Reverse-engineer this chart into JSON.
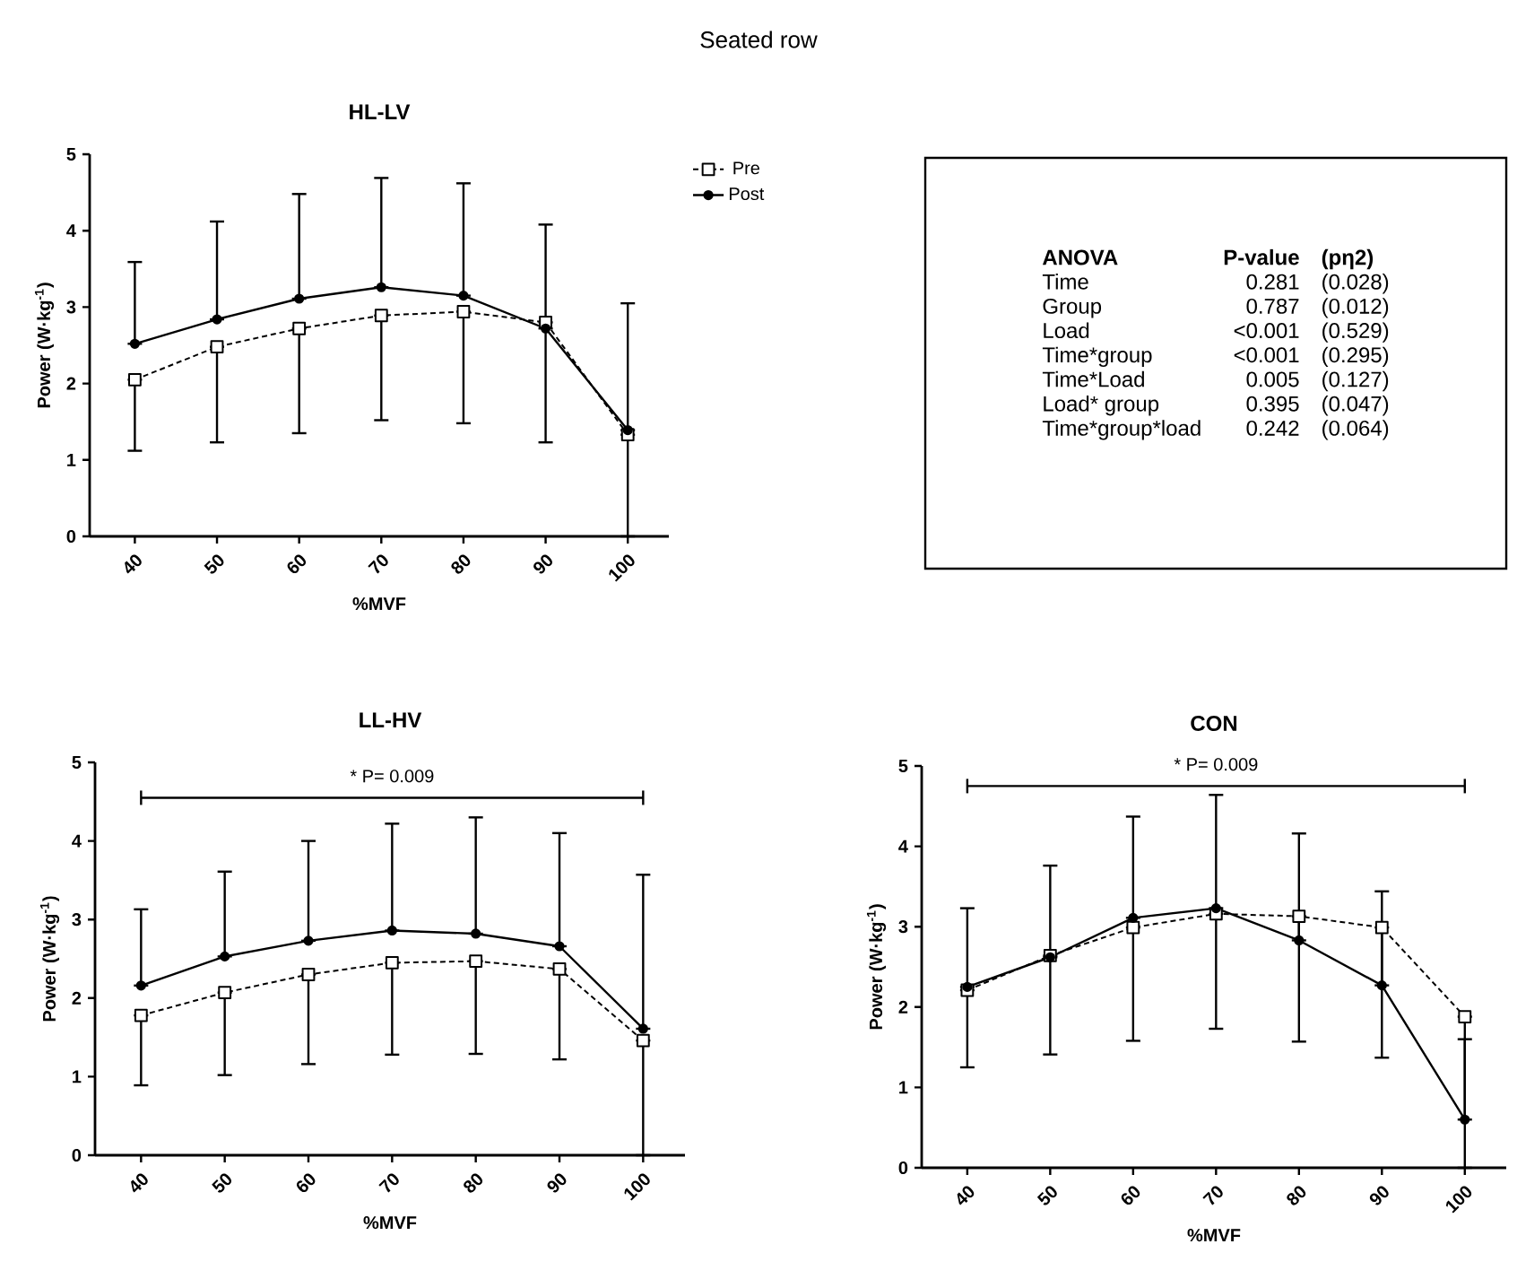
{
  "chart_data": [
    {
      "type": "line",
      "title": "HL-LV",
      "annotations": [
        "Seated row"
      ],
      "xlabel": "%MVF",
      "ylabel": "Power (W·kg$^{-1}$)",
      "categories": [
        "40",
        "50",
        "60",
        "70",
        "80",
        "90",
        "100"
      ],
      "ylim": [
        0,
        5
      ],
      "yticks": [
        0,
        1,
        2,
        3,
        4,
        5
      ],
      "legend": "top right",
      "series": [
        {
          "name": "Pre",
          "color": "#000000",
          "marker": "square",
          "line_style": "dashed",
          "values": [
            2.05,
            2.48,
            2.72,
            2.89,
            2.94,
            2.8,
            1.33
          ],
          "errors": [
            [
              1.12,
              2.05
            ],
            [
              1.23,
              2.48
            ],
            [
              1.35,
              2.72
            ],
            [
              1.52,
              2.89
            ],
            [
              1.48,
              2.94
            ],
            [
              1.23,
              2.8
            ],
            [
              0,
              1.33
            ]
          ]
        },
        {
          "name": "Post",
          "color": "#000000",
          "marker": "circle",
          "line_style": "solid",
          "values": [
            2.52,
            2.84,
            3.11,
            3.26,
            3.15,
            2.72,
            1.39
          ],
          "errors": [
            [
              2.52,
              3.59
            ],
            [
              2.84,
              4.12
            ],
            [
              3.11,
              4.48
            ],
            [
              3.26,
              4.69
            ],
            [
              3.15,
              4.62
            ],
            [
              2.72,
              4.08
            ],
            [
              1.39,
              3.05
            ]
          ]
        }
      ]
    },
    {
      "type": "other",
      "annotations": [
        "ANOVA",
        "P-value",
        "(pη2)",
        "Time",
        "0.281",
        "(0.028)",
        "Group",
        "0.787",
        "(0.012)",
        "Load",
        "<0.001",
        "(0.529)",
        "Time*group",
        "<0.001",
        "(0.295)",
        "Time*Load",
        "0.005",
        "(0.127)",
        "Load* group",
        "0.395",
        "(0.047)",
        "Time*group*load",
        "0.242",
        "(0.064)"
      ]
    },
    {
      "type": "line",
      "title": "LL-HV",
      "xlabel": "%MVF",
      "ylabel": "Power (W·kg$^{-1}$)",
      "annotations": [
        "* P= 0.009"
      ],
      "ref_lines": [
        {
          "axis": "y",
          "value": 4.55
        }
      ],
      "categories": [
        "40",
        "50",
        "60",
        "70",
        "80",
        "90",
        "100"
      ],
      "ylim": [
        0,
        5
      ],
      "yticks": [
        0,
        1,
        2,
        3,
        4,
        5
      ],
      "series": [
        {
          "color": "#000000",
          "marker": "square",
          "line_style": "dashed",
          "values": [
            1.78,
            2.07,
            2.3,
            2.45,
            2.47,
            2.37,
            1.46
          ],
          "errors": [
            [
              0.89,
              1.78
            ],
            [
              1.02,
              2.07
            ],
            [
              1.16,
              2.3
            ],
            [
              1.28,
              2.45
            ],
            [
              1.29,
              2.47
            ],
            [
              1.22,
              2.37
            ],
            [
              0,
              1.46
            ]
          ]
        },
        {
          "color": "#000000",
          "marker": "circle",
          "line_style": "solid",
          "values": [
            2.16,
            2.53,
            2.73,
            2.86,
            2.82,
            2.66,
            1.61
          ],
          "errors": [
            [
              2.16,
              3.13
            ],
            [
              2.53,
              3.61
            ],
            [
              2.73,
              4.0
            ],
            [
              2.86,
              4.22
            ],
            [
              2.82,
              4.3
            ],
            [
              2.66,
              4.1
            ],
            [
              1.61,
              3.57
            ]
          ]
        }
      ]
    },
    {
      "type": "line",
      "title": "CON",
      "xlabel": "%MVF",
      "ylabel": "Power (W·kg$^{-1}$)",
      "annotations": [
        "* P= 0.009"
      ],
      "ref_lines": [
        {
          "axis": "y",
          "value": 4.75
        }
      ],
      "categories": [
        "40",
        "50",
        "60",
        "70",
        "80",
        "90",
        "100"
      ],
      "ylim": [
        0,
        5
      ],
      "yticks": [
        0,
        1,
        2,
        3,
        4,
        5
      ],
      "series": [
        {
          "color": "#000000",
          "marker": "square",
          "line_style": "dashed",
          "values": [
            2.21,
            2.64,
            2.99,
            3.16,
            3.13,
            2.99,
            1.88
          ],
          "errors": [
            [
              1.25,
              2.21
            ],
            [
              1.41,
              2.64
            ],
            [
              1.58,
              2.99
            ],
            [
              1.73,
              3.16
            ],
            [
              1.57,
              3.13
            ],
            [
              1.37,
              2.99
            ],
            [
              0,
              1.88
            ]
          ]
        },
        {
          "color": "#000000",
          "marker": "circle",
          "line_style": "solid",
          "values": [
            2.25,
            2.62,
            3.11,
            3.23,
            2.83,
            2.27,
            0.6
          ],
          "errors": [
            [
              2.25,
              3.23
            ],
            [
              2.62,
              3.76
            ],
            [
              3.11,
              4.37
            ],
            [
              3.23,
              4.64
            ],
            [
              2.83,
              4.16
            ],
            [
              2.27,
              3.44
            ],
            [
              0.6,
              1.6
            ]
          ]
        }
      ]
    }
  ]
}
